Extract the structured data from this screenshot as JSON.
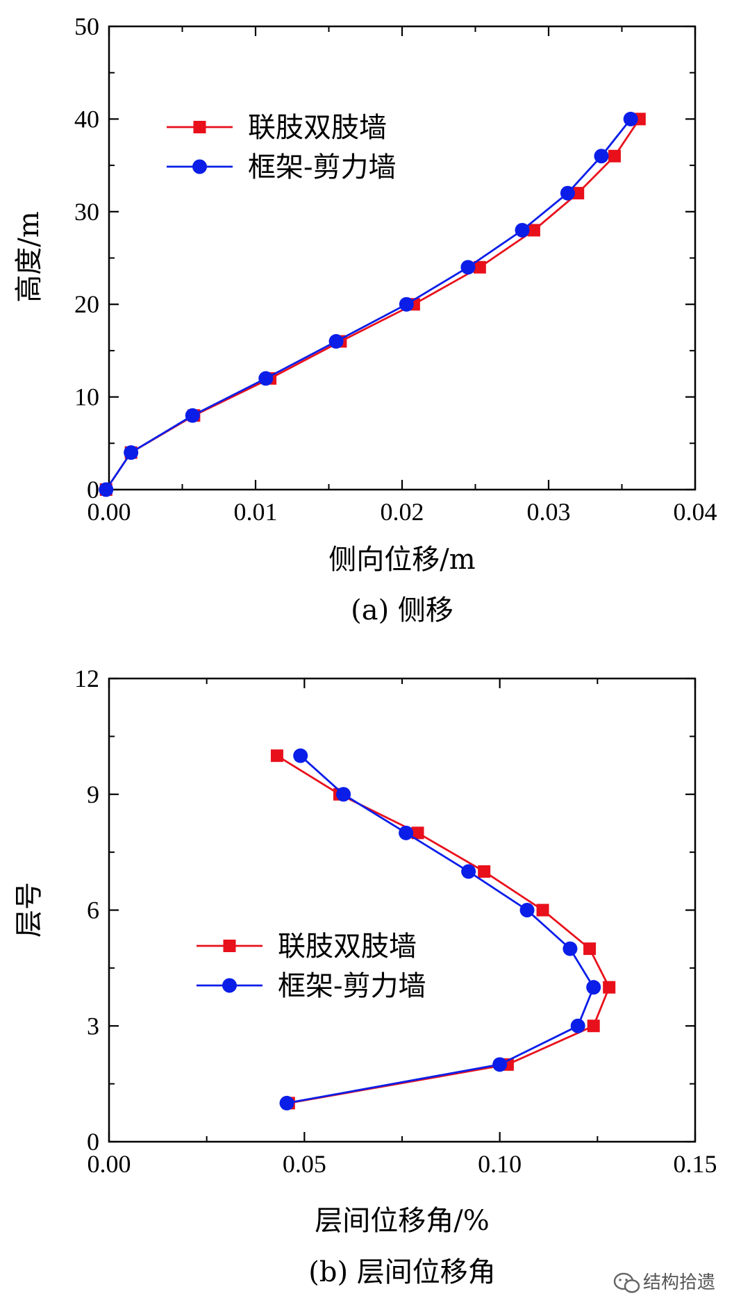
{
  "chart_data": [
    {
      "type": "line",
      "xlabel": "侧向位移/m",
      "ylabel": "高度/m",
      "caption": "(a) 侧移",
      "xlim": [
        0,
        0.04
      ],
      "ylim": [
        0,
        50
      ],
      "xticks": [
        0,
        0.01,
        0.02,
        0.03,
        0.04
      ],
      "yticks": [
        0,
        10,
        20,
        30,
        40,
        50
      ],
      "xtick_labels": [
        "0.00",
        "0.01",
        "0.02",
        "0.03",
        "0.04"
      ],
      "ytick_labels": [
        "0",
        "10",
        "20",
        "30",
        "40",
        "50"
      ],
      "legend_position": "upper-left",
      "series": [
        {
          "name": "联肢双肢墙",
          "color": "#e8101b",
          "marker": "square",
          "points": [
            [
              -0.0002,
              0
            ],
            [
              0.0015,
              4
            ],
            [
              0.0058,
              8
            ],
            [
              0.011,
              12
            ],
            [
              0.0158,
              16
            ],
            [
              0.0208,
              20
            ],
            [
              0.0253,
              24
            ],
            [
              0.029,
              28
            ],
            [
              0.032,
              32
            ],
            [
              0.0345,
              36
            ],
            [
              0.0362,
              40
            ]
          ]
        },
        {
          "name": "框架-剪力墙",
          "color": "#0a1ee8",
          "marker": "circle",
          "points": [
            [
              -0.0002,
              0
            ],
            [
              0.0015,
              4
            ],
            [
              0.0057,
              8
            ],
            [
              0.0107,
              12
            ],
            [
              0.0155,
              16
            ],
            [
              0.0203,
              20
            ],
            [
              0.0245,
              24
            ],
            [
              0.0282,
              28
            ],
            [
              0.0313,
              32
            ],
            [
              0.0336,
              36
            ],
            [
              0.0356,
              40
            ]
          ]
        }
      ]
    },
    {
      "type": "line",
      "xlabel": "层间位移角/%",
      "ylabel": "层号",
      "caption": "(b) 层间位移角",
      "xlim": [
        0,
        0.15
      ],
      "ylim": [
        0,
        12
      ],
      "xticks": [
        0,
        0.05,
        0.1,
        0.15
      ],
      "yticks": [
        0,
        3,
        6,
        9,
        12
      ],
      "xtick_labels": [
        "0.00",
        "0.05",
        "0.10",
        "0.15"
      ],
      "ytick_labels": [
        "0",
        "3",
        "6",
        "9",
        "12"
      ],
      "legend_position": "middle-left",
      "series": [
        {
          "name": "联肢双肢墙",
          "color": "#e8101b",
          "marker": "square",
          "points": [
            [
              0.046,
              1
            ],
            [
              0.102,
              2
            ],
            [
              0.124,
              3
            ],
            [
              0.128,
              4
            ],
            [
              0.123,
              5
            ],
            [
              0.111,
              6
            ],
            [
              0.096,
              7
            ],
            [
              0.079,
              8
            ],
            [
              0.059,
              9
            ],
            [
              0.043,
              10
            ]
          ]
        },
        {
          "name": "框架-剪力墙",
          "color": "#0a1ee8",
          "marker": "circle",
          "points": [
            [
              0.0455,
              1
            ],
            [
              0.1,
              2
            ],
            [
              0.12,
              3
            ],
            [
              0.124,
              4
            ],
            [
              0.118,
              5
            ],
            [
              0.107,
              6
            ],
            [
              0.092,
              7
            ],
            [
              0.076,
              8
            ],
            [
              0.06,
              9
            ],
            [
              0.049,
              10
            ]
          ]
        }
      ]
    }
  ],
  "watermark": {
    "text": "结构拾遗",
    "icon": "wechat-icon"
  }
}
